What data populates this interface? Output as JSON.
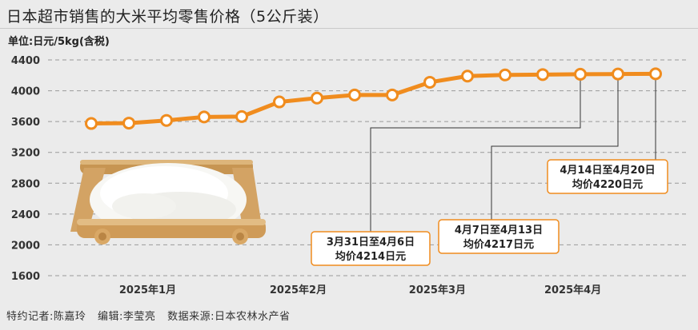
{
  "title": "日本超市销售的大米平均零售价格（5公斤装）",
  "unit": "单位:日元/5kg(含税)",
  "footer": {
    "reporter": "特约记者:陈嘉玲",
    "editor": "编辑:李莹亮",
    "source": "数据来源:日本农林水产省"
  },
  "colors": {
    "line": "#f08c1e",
    "marker_fill": "#ffffff",
    "grid": "#9a9a9a",
    "box_border": "#f08c1e",
    "leader": "#333333"
  },
  "chart_data": {
    "type": "line",
    "title": "日本超市销售的大米平均零售价格（5公斤装）",
    "ylabel": "单位:日元/5kg(含税)",
    "ylim": [
      1600,
      4400
    ],
    "yticks": [
      1600,
      2000,
      2400,
      2800,
      3200,
      3600,
      4000,
      4400
    ],
    "xtick_labels": [
      "2025年1月",
      "2025年2月",
      "2025年3月",
      "2025年4月"
    ],
    "xtick_positions": [
      1.5,
      5.5,
      9.2,
      12.8
    ],
    "grid": true,
    "series": [
      {
        "values": [
          3575,
          3580,
          3615,
          3660,
          3665,
          3855,
          3905,
          3945,
          3945,
          4110,
          4190,
          4205,
          4210,
          4214,
          4217,
          4220
        ]
      }
    ],
    "annotations": [
      {
        "point_index": 13,
        "lines": [
          "3月31日至4月6日",
          "均价4214日元"
        ]
      },
      {
        "point_index": 14,
        "lines": [
          "4月7日至4月13日",
          "均价4217日元"
        ]
      },
      {
        "point_index": 15,
        "lines": [
          "4月14日至4月20日",
          "均价4220日元"
        ]
      }
    ]
  }
}
